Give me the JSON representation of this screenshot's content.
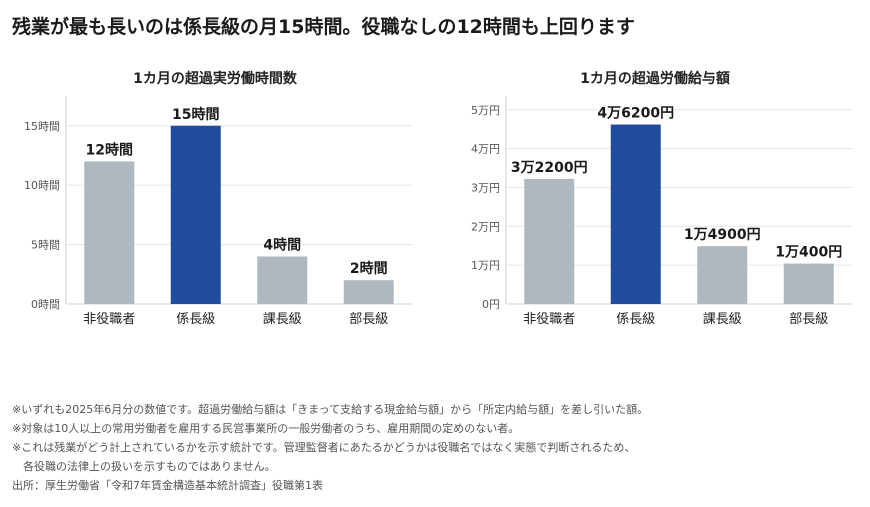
{
  "headline": "残業が最も長いのは係長級の月15時間。役職なしの12時間も上回ります",
  "colors": {
    "bar_default": "#b0b8bf",
    "bar_highlight": "#1f4c9c",
    "grid": "#e3e6ea",
    "axis": "#cfd4d9"
  },
  "chart_data": [
    {
      "type": "bar",
      "title": "1カ月の超過実労働時間数",
      "categories": [
        "非役職者",
        "係長級",
        "課長級",
        "部長級"
      ],
      "values": [
        12,
        15,
        4,
        2
      ],
      "value_labels": [
        "12時間",
        "15時間",
        "4時間",
        "2時間"
      ],
      "highlight_index": 1,
      "ylim": [
        0,
        17
      ],
      "y_ticks": [
        0,
        5,
        10,
        15
      ],
      "y_tick_labels": [
        "0時間",
        "5時間",
        "10時間",
        "15時間"
      ],
      "xlabel": "",
      "ylabel": "",
      "grid": true
    },
    {
      "type": "bar",
      "title": "1カ月の超過労働給与額",
      "categories": [
        "非役職者",
        "係長級",
        "課長級",
        "部長級"
      ],
      "values": [
        32200,
        46200,
        14900,
        10400
      ],
      "value_labels": [
        "3万2200円",
        "4万6200円",
        "1万4900円",
        "1万400円"
      ],
      "highlight_index": 1,
      "ylim": [
        0,
        52000
      ],
      "y_ticks": [
        0,
        10000,
        20000,
        30000,
        40000,
        50000
      ],
      "y_tick_labels": [
        "0円",
        "1万円",
        "2万円",
        "3万円",
        "4万円",
        "5万円"
      ],
      "xlabel": "",
      "ylabel": "",
      "grid": true
    }
  ],
  "notes": [
    "※いずれも2025年6月分の数値です。超過労働給与額は「きまって支給する現金給与額」から「所定内給与額」を差し引いた額。",
    "※対象は10人以上の常用労働者を雇用する民営事業所の一般労働者のうち、雇用期間の定めのない者。",
    "※これは残業がどう計上されているかを示す統計です。管理監督者にあたるかどうかは役職名ではなく実態で判断されるため、",
    "　各役職の法律上の扱いを示すものではありません。",
    "出所：厚生労働省「令和7年賃金構造基本統計調査」役職第1表"
  ]
}
